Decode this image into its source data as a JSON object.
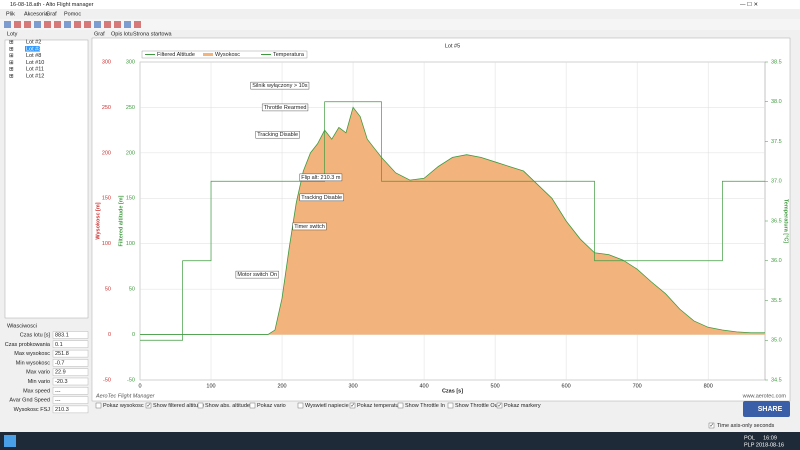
{
  "window": {
    "title": "16-08-18.ath - Alto Flight manager"
  },
  "menu": [
    "Plik",
    "Akcesoria",
    "Graf",
    "Pomoc"
  ],
  "tabs": [
    "Graf",
    "Opis lotu",
    "Strona startowa"
  ],
  "flights": {
    "label": "Loty",
    "items": [
      "Lot #2",
      "Lot #3",
      "Lot #8",
      "Lot #10",
      "Lot #11",
      "Lot #12"
    ],
    "selected": 1
  },
  "properties": {
    "label": "Własciwosci",
    "rows": [
      [
        "Czas lotu [s]",
        "883.1"
      ],
      [
        "Czas probkowania",
        "0.1"
      ],
      [
        "Max wysokosc",
        "251.8"
      ],
      [
        "Min wysokosc",
        "-0.7"
      ],
      [
        "Max vario",
        "22.9"
      ],
      [
        "Min vario",
        "-20.3"
      ],
      [
        "Max speed",
        "---"
      ],
      [
        "Avar Gnd Speed",
        "---"
      ],
      [
        "Wysokosc FSJ",
        "210.3"
      ]
    ]
  },
  "chart_data": {
    "type": "area",
    "title": "Lot #5",
    "xlabel": "Czas [s]",
    "ylabel": "Wysokosc [m]",
    "ylabel_filtered": "Filtered altitude [m]",
    "y2label": "Temperatura [°C]",
    "x": [
      0,
      100,
      180,
      190,
      200,
      210,
      220,
      230,
      240,
      250,
      260,
      270,
      280,
      290,
      300,
      310,
      320,
      330,
      340,
      360,
      380,
      400,
      420,
      440,
      460,
      480,
      500,
      520,
      540,
      560,
      580,
      600,
      620,
      640,
      660,
      680,
      700,
      720,
      740,
      760,
      780,
      800,
      820,
      840,
      860,
      880
    ],
    "series": [
      {
        "name": "Filtered Altitude",
        "color": "#3f9a3f",
        "values": [
          0,
          0,
          0,
          5,
          40,
          95,
          145,
          180,
          200,
          210,
          225,
          215,
          228,
          222,
          250,
          240,
          215,
          205,
          195,
          178,
          170,
          172,
          185,
          195,
          198,
          195,
          190,
          185,
          180,
          165,
          150,
          125,
          105,
          90,
          88,
          82,
          72,
          58,
          45,
          28,
          15,
          8,
          5,
          3,
          2,
          2
        ]
      },
      {
        "name": "Wysokosc",
        "color": "#f2b47c",
        "values": [
          0,
          0,
          0,
          5,
          40,
          95,
          145,
          180,
          200,
          210,
          225,
          215,
          228,
          222,
          250,
          240,
          215,
          205,
          195,
          178,
          170,
          172,
          185,
          195,
          198,
          195,
          190,
          185,
          180,
          165,
          150,
          125,
          105,
          90,
          88,
          82,
          72,
          58,
          45,
          28,
          15,
          8,
          5,
          3,
          2,
          2
        ]
      },
      {
        "name": "Temperatura",
        "color": "#3f9a3f",
        "axis": "y2",
        "x": [
          0,
          60,
          100,
          260,
          340,
          640,
          820,
          880
        ],
        "values": [
          35,
          36,
          37,
          38,
          37,
          36,
          37,
          37
        ]
      }
    ],
    "xlim": [
      0,
      880
    ],
    "xticks": [
      0,
      100,
      200,
      300,
      400,
      500,
      600,
      700,
      800
    ],
    "ylim": [
      -50,
      300
    ],
    "yticks": [
      -50,
      0,
      50,
      100,
      150,
      200,
      250,
      300
    ],
    "y2lim": [
      34.5,
      38.5
    ],
    "y2ticks": [
      34.5,
      {
        "value": 35,
        "label": "35.0"
      },
      35.5,
      {
        "value": 36,
        "label": "36.0"
      },
      36.5,
      {
        "value": 37,
        "label": "37.0"
      },
      37.5,
      {
        "value": 38,
        "label": "38.0"
      },
      38.5
    ],
    "grid": true,
    "annotations": [
      {
        "text": "Motor switch On",
        "x": 135,
        "y": 66
      },
      {
        "text": "Timer switch",
        "x": 215,
        "y": 119
      },
      {
        "text": "Tracking Disable",
        "x": 225,
        "y": 151
      },
      {
        "text": "Flip alt: 210.3 m",
        "x": 225,
        "y": 173
      },
      {
        "text": "Tracking Disable",
        "x": 163,
        "y": 220
      },
      {
        "text": "Throttle Rearmed",
        "x": 172,
        "y": 250
      },
      {
        "text": "Silnik wyłączony > 10s",
        "x": 156,
        "y": 274
      }
    ]
  },
  "footer": {
    "left": "AeroTec Flight Manager",
    "right": "www.aerotec.com"
  },
  "options": [
    {
      "label": "Pokaz wysokosc",
      "checked": false
    },
    {
      "label": "Show filtered altitude",
      "checked": true
    },
    {
      "label": "Show abs. altitude",
      "checked": false
    },
    {
      "label": "Pokaz vario",
      "checked": false
    },
    {
      "label": "Wyswietl napiecie",
      "checked": false
    },
    {
      "label": "Pokaz temperature",
      "checked": true
    },
    {
      "label": "Show Throttle In",
      "checked": false
    },
    {
      "label": "Show Throttle Out",
      "checked": false
    },
    {
      "label": "Pokaz markery",
      "checked": true
    }
  ],
  "share": "SHARE",
  "time_axis": {
    "label": "Time axis-only seconds",
    "checked": true
  },
  "taskbar": {
    "lang": "POL",
    "layout": "PLP",
    "time": "16:09",
    "date": "2018-08-16"
  }
}
